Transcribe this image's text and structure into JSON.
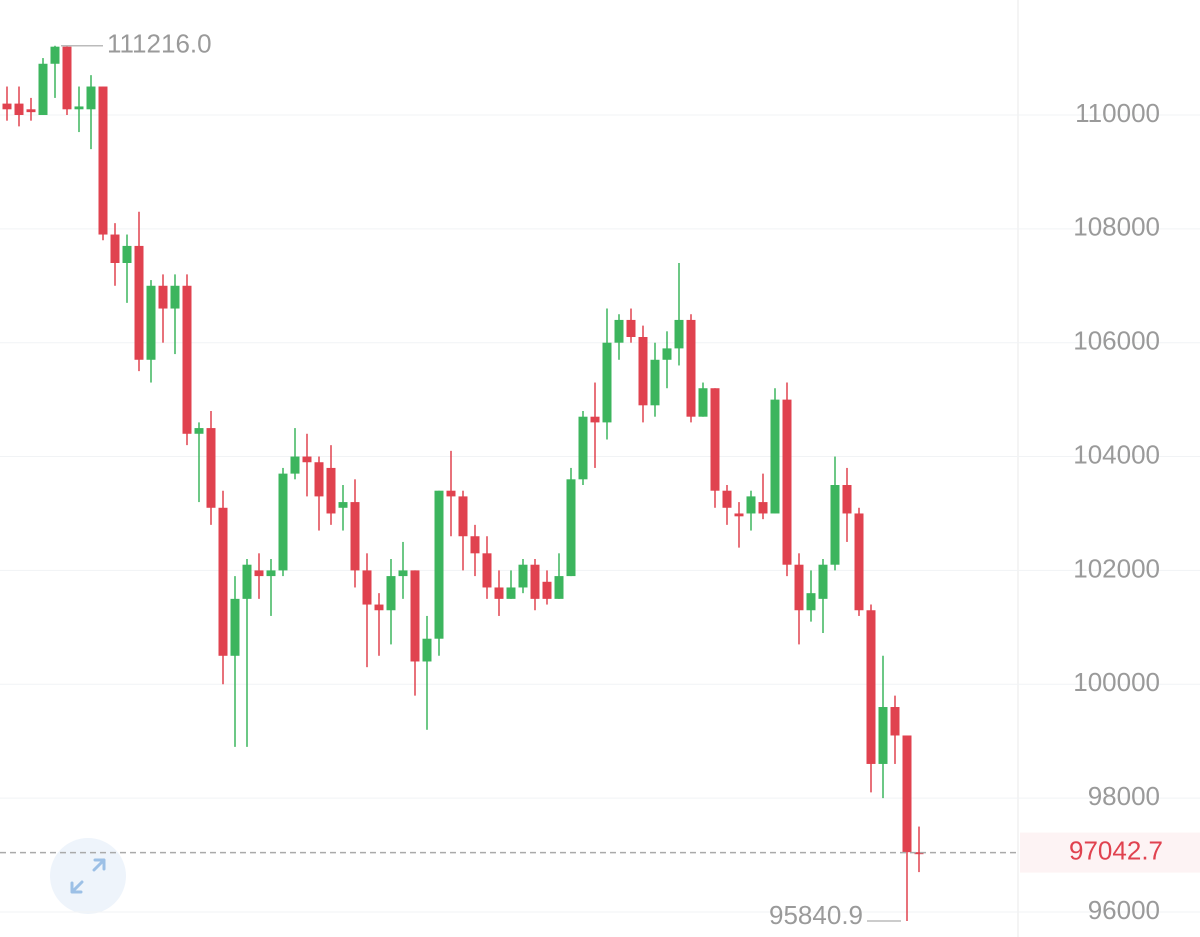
{
  "chart_data": {
    "type": "candlestick",
    "up_color": "#3cb55e",
    "down_color": "#e0424f",
    "ylim": [
      95560,
      112020
    ],
    "yticks": [
      96000,
      98000,
      100000,
      102000,
      104000,
      106000,
      108000,
      110000
    ],
    "grid": true,
    "open": [
      110200,
      110200,
      110100,
      110000,
      110900,
      111200,
      110100,
      110100,
      110500,
      107900,
      107400,
      107700,
      105700,
      107000,
      106600,
      107000,
      104400,
      104500,
      103100,
      100500,
      101500,
      102000,
      101900,
      102000,
      103700,
      104000,
      103900,
      103800,
      103100,
      103200,
      102000,
      101400,
      101300,
      101900,
      102000,
      100400,
      100800,
      103400,
      103300,
      102600,
      102300,
      101700,
      101500,
      101700,
      102100,
      101800,
      101500,
      101900,
      103600,
      104700,
      104600,
      106000,
      106400,
      106100,
      104900,
      105700,
      105900,
      106400,
      104700,
      105200,
      103400,
      103000,
      103000,
      103200,
      103000,
      105000,
      102100,
      101300,
      101500,
      102100,
      103500,
      103000,
      101300,
      98600,
      99600,
      99100,
      97050
    ],
    "high": [
      110500,
      110500,
      110300,
      111000,
      111216,
      111216,
      110500,
      110700,
      110500,
      108100,
      107900,
      108300,
      107100,
      107200,
      107200,
      107200,
      104600,
      104800,
      103400,
      101900,
      102200,
      102300,
      102200,
      103800,
      104500,
      104400,
      104000,
      104200,
      103500,
      103600,
      102300,
      101600,
      102200,
      102500,
      102000,
      101200,
      103400,
      104100,
      103400,
      102800,
      102600,
      102000,
      102000,
      102200,
      102200,
      102000,
      102300,
      103800,
      104800,
      105300,
      106600,
      106500,
      106600,
      106300,
      106000,
      106200,
      107400,
      106500,
      105300,
      105200,
      103500,
      103200,
      103400,
      103700,
      105200,
      105300,
      102300,
      102000,
      102200,
      104000,
      103800,
      103100,
      101400,
      100500,
      99800,
      99100,
      97500
    ],
    "low": [
      109900,
      109800,
      109900,
      110000,
      110300,
      110000,
      109700,
      109400,
      107800,
      107000,
      106700,
      105500,
      105300,
      106000,
      105800,
      104200,
      103200,
      102800,
      100000,
      98900,
      98900,
      101500,
      101200,
      101900,
      103600,
      103300,
      102700,
      102800,
      102700,
      101700,
      100300,
      100500,
      100700,
      101500,
      99800,
      99200,
      100500,
      102600,
      102000,
      101900,
      101500,
      101200,
      101500,
      101600,
      101300,
      101400,
      101500,
      101900,
      103500,
      103800,
      104300,
      105700,
      106000,
      104600,
      104700,
      105200,
      105600,
      104600,
      104700,
      103100,
      102800,
      102400,
      102700,
      102900,
      103000,
      101900,
      100700,
      101100,
      100900,
      102000,
      102500,
      101200,
      98100,
      98000,
      98600,
      95840.9,
      96700
    ],
    "close": [
      110100,
      110000,
      110050,
      110900,
      111200,
      110100,
      110150,
      110500,
      107900,
      107400,
      107700,
      105700,
      107000,
      106600,
      107000,
      104400,
      104500,
      103100,
      100500,
      101500,
      102100,
      101900,
      102000,
      103700,
      104000,
      103900,
      103300,
      103000,
      103200,
      102000,
      101400,
      101300,
      101900,
      102000,
      100400,
      100800,
      103400,
      103300,
      102600,
      102300,
      101700,
      101500,
      101700,
      102100,
      101500,
      101500,
      101900,
      103600,
      104700,
      104600,
      106000,
      106400,
      106100,
      104900,
      105700,
      105900,
      106400,
      104700,
      105200,
      103400,
      103100,
      102950,
      103300,
      103000,
      105000,
      102100,
      101300,
      101600,
      102100,
      103500,
      103000,
      101300,
      98600,
      99600,
      99100,
      97050,
      97042.7
    ],
    "max_label": {
      "value": 111216,
      "label": "111216.0"
    },
    "min_label": 95840.9,
    "current_price": 97042.7,
    "current_color": "#e0424f"
  }
}
